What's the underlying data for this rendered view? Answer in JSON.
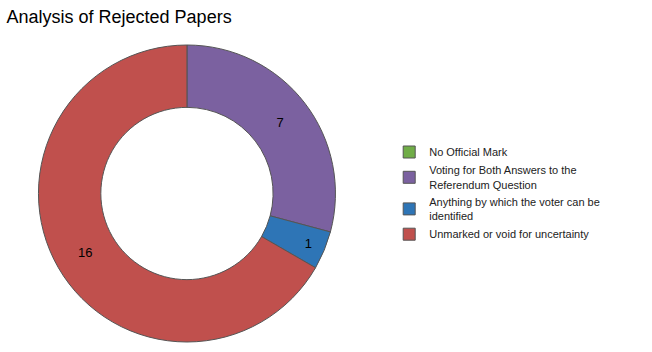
{
  "chart_data": {
    "type": "pie",
    "title": "Analysis of Rejected Papers",
    "categories": [
      "No Official Mark",
      "Voting for Both Answers to the\nReferendum Question",
      "Anything by which the voter can be\nidentified",
      "Unmarked or void for uncertainty"
    ],
    "values": [
      0.001,
      7,
      1,
      16
    ],
    "value_labels": [
      null,
      "7",
      "1",
      "16"
    ],
    "colors": [
      "#70AD47",
      "#7B61A0",
      "#2E75B6",
      "#C0504D"
    ],
    "legend": "right"
  }
}
